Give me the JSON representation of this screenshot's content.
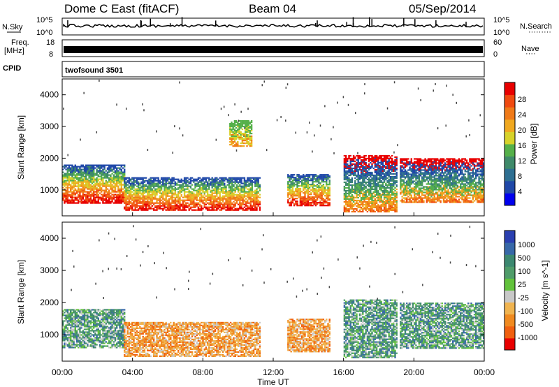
{
  "header": {
    "radar": "Dome C East (fitACF)",
    "beam": "Beam 04",
    "date": "05/Sep/2014"
  },
  "noise_panel": {
    "left_label": "N.Sky",
    "left_ticks": [
      "10^5",
      "10^0"
    ],
    "right_ticks": [
      "10^5",
      "10^0"
    ],
    "right_label": "N.Search",
    "right_label_dots": "·········"
  },
  "freq_panel": {
    "left_label_1": "Freq.",
    "left_label_2": "[MHz]",
    "left_ticks": [
      "18",
      "8"
    ],
    "right_ticks": [
      "60",
      "0"
    ],
    "right_label": "Nave",
    "right_label_dots": "····"
  },
  "cpid_panel": {
    "left_label": "CPID",
    "program": "twofsound 3501"
  },
  "x_axis": {
    "label": "Time UT",
    "ticks": [
      "00:00",
      "04:00",
      "08:00",
      "12:00",
      "16:00",
      "20:00",
      "00:00"
    ]
  },
  "power_panel": {
    "ylabel": "Slant Range [km]",
    "yticks": [
      "1000",
      "2000",
      "3000",
      "4000"
    ],
    "colorbar_label": "Power [dB]",
    "colorbar_ticks": [
      "4",
      "8",
      "12",
      "16",
      "20",
      "24",
      "28"
    ],
    "colorbar_colors": [
      "#0000ee",
      "#1f48a8",
      "#2e6f92",
      "#3f8a6a",
      "#55b04a",
      "#d7d22a",
      "#f0a820",
      "#f07a18",
      "#f04a10",
      "#e80000"
    ]
  },
  "velocity_panel": {
    "ylabel": "Slant Range [km]",
    "yticks": [
      "1000",
      "2000",
      "3000",
      "4000"
    ],
    "colorbar_label": "Velocity [m s^-1]",
    "colorbar_ticks": [
      "1000",
      "500",
      "100",
      "25",
      "-25",
      "-100",
      "-500",
      "-1000"
    ],
    "colorbar_colors": [
      "#2a3fb0",
      "#3768a8",
      "#3c8870",
      "#4f9c6a",
      "#62c23c",
      "#c8c8c8",
      "#f0b450",
      "#f08a20",
      "#f06010",
      "#e80000"
    ]
  },
  "chart_data": {
    "type": "heatmap",
    "x_range_hours": [
      0,
      24
    ],
    "y_range_km": [
      180,
      4500
    ],
    "grid": false,
    "power_regions": [
      {
        "t0": 0.0,
        "t1": 3.5,
        "r0": 600,
        "r1": 1800,
        "level": "high"
      },
      {
        "t0": 3.5,
        "t1": 11.2,
        "r0": 350,
        "r1": 1400,
        "level": "high"
      },
      {
        "t0": 9.5,
        "t1": 10.8,
        "r0": 2400,
        "r1": 3200,
        "level": "low"
      },
      {
        "t0": 12.8,
        "t1": 15.2,
        "r0": 500,
        "r1": 1500,
        "level": "high"
      },
      {
        "t0": 16.0,
        "t1": 19.0,
        "r0": 300,
        "r1": 2100,
        "level": "mid"
      },
      {
        "t0": 19.2,
        "t1": 24.0,
        "r0": 600,
        "r1": 2000,
        "level": "mid"
      }
    ],
    "velocity_regions": [
      {
        "t0": 0.0,
        "t1": 3.5,
        "r0": 600,
        "r1": 1800,
        "sign": "positive"
      },
      {
        "t0": 3.5,
        "t1": 11.2,
        "r0": 350,
        "r1": 1400,
        "sign": "negative"
      },
      {
        "t0": 12.8,
        "t1": 15.2,
        "r0": 500,
        "r1": 1500,
        "sign": "negative"
      },
      {
        "t0": 16.0,
        "t1": 19.0,
        "r0": 300,
        "r1": 2100,
        "sign": "positive"
      },
      {
        "t0": 19.2,
        "t1": 24.0,
        "r0": 600,
        "r1": 2000,
        "sign": "positive"
      }
    ]
  }
}
